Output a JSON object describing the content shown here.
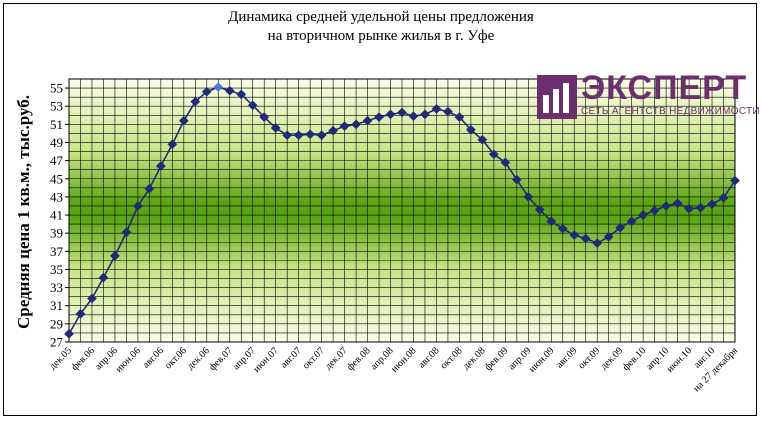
{
  "chart_data": {
    "type": "line",
    "title": "Динамика средней удельной цены предложения",
    "subtitle": "на вторичном рынке жилья в г. Уфе",
    "ylabel": "Средняя цена 1 кв.м., тыс.руб.",
    "xlabel": "",
    "ylim": [
      27,
      56
    ],
    "yticks": [
      27,
      29,
      31,
      33,
      35,
      37,
      39,
      41,
      43,
      45,
      47,
      49,
      51,
      53,
      55
    ],
    "grid": true,
    "legend": "none",
    "categories": [
      "дек.05",
      "",
      "фев.06",
      "",
      "апр.06",
      "",
      "июн.06",
      "",
      "авг.06",
      "",
      "окт.06",
      "",
      "дек.06",
      "",
      "фев.07",
      "",
      "апр.07",
      "",
      "июн.07",
      "",
      "авг.07",
      "",
      "окт.07",
      "",
      "дек.07",
      "",
      "фев.08",
      "",
      "апр.08",
      "",
      "июн.08",
      "",
      "авг.08",
      "",
      "окт.08",
      "",
      "дек.08",
      "",
      "фев.09",
      "",
      "апр.09",
      "",
      "июн.09",
      "",
      "авг.09",
      "",
      "окт.09",
      "",
      "дек.09",
      "",
      "фев.10",
      "",
      "апр.10",
      "",
      "июн.10",
      "",
      "авг.10",
      "",
      "на 27 декабря"
    ],
    "series": [
      {
        "values": [
          27.9,
          30.1,
          31.8,
          34.1,
          36.5,
          39.1,
          42.0,
          43.9,
          46.4,
          48.8,
          51.4,
          53.5,
          54.6,
          55.1,
          54.7,
          54.3,
          53.1,
          51.8,
          50.6,
          49.8,
          49.8,
          49.9,
          49.8,
          50.3,
          50.8,
          51.0,
          51.4,
          51.8,
          52.1,
          52.3,
          51.9,
          52.1,
          52.7,
          52.4,
          51.8,
          50.4,
          49.3,
          47.7,
          46.8,
          44.9,
          43.0,
          41.6,
          40.3,
          39.5,
          38.8,
          38.4,
          37.9,
          38.6,
          39.6,
          40.3,
          41.0,
          41.5,
          42.0,
          42.3,
          41.7,
          41.8,
          42.2,
          42.9,
          44.8
        ],
        "highlight_index": 13,
        "color": "#1f2a78",
        "highlight_color": "#4a7ae0"
      }
    ],
    "plot_colors": {
      "top": "#fbfde6",
      "upper": "#c8e486",
      "band": "#5aa511",
      "lower": "#c8e486",
      "bottom": "#fbfde6"
    }
  },
  "logo": {
    "name": "ЭКСПЕРТ",
    "tagline": "СЕТЬ АГЕНТСТВ НЕДВИЖИМОСТИ"
  }
}
